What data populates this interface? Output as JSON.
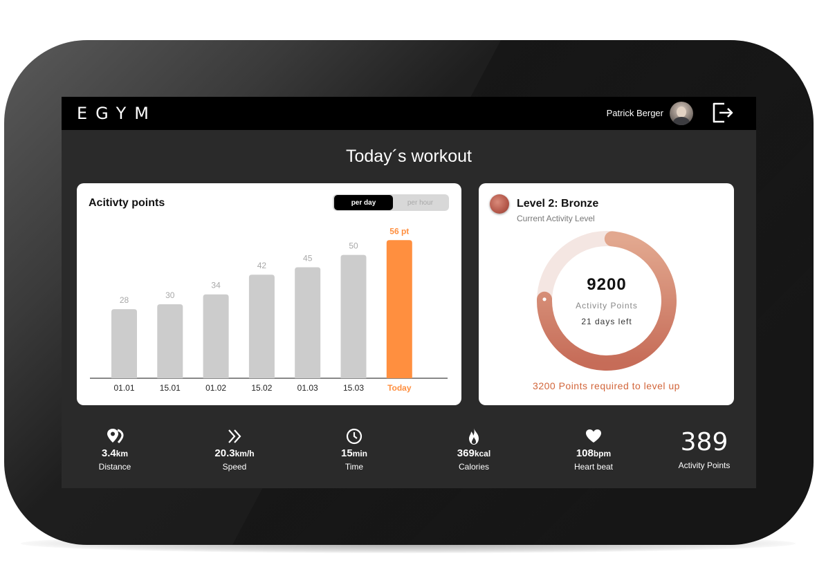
{
  "header": {
    "logo": "EGYM",
    "user_name": "Patrick Berger"
  },
  "page": {
    "title": "Today´s workout"
  },
  "activity": {
    "title": "Acitivty points",
    "toggle": {
      "per_day": "per day",
      "per_hour": "per hour",
      "selected": "per day"
    },
    "highlight_color": "#ff8f3f",
    "bar_color": "#cccccc"
  },
  "chart_data": {
    "type": "bar",
    "categories": [
      "01.01",
      "15.01",
      "01.02",
      "15.02",
      "01.03",
      "15.03",
      "Today"
    ],
    "values": [
      28,
      30,
      34,
      42,
      45,
      50,
      56
    ],
    "data_labels": [
      "28",
      "30",
      "34",
      "42",
      "45",
      "50",
      "56 pt"
    ],
    "highlighted_index": 6,
    "title": "Acitivty points",
    "ylim": [
      0,
      60
    ],
    "grid": false,
    "legend": "none"
  },
  "level": {
    "title": "Level 2: Bronze",
    "subtitle": "Current Activity Level",
    "points": "9200",
    "points_label": "Activity Points",
    "days_left": "21 days left",
    "level_up_text": "3200 Points required to level up",
    "progress_fraction": 0.74,
    "ring_color": "#c9725c",
    "track_color": "#f4e6e2"
  },
  "stats": {
    "distance": {
      "value": "3.4",
      "unit": "km",
      "label": "Distance",
      "icon": "location-pin-icon"
    },
    "speed": {
      "value": "20.3",
      "unit": "km/h",
      "label": "Speed",
      "icon": "double-chevron-right-icon"
    },
    "time": {
      "value": "15",
      "unit": "min",
      "label": "Time",
      "icon": "clock-icon"
    },
    "calories": {
      "value": "369",
      "unit": "kcal",
      "label": "Calories",
      "icon": "flame-icon"
    },
    "heart": {
      "value": "108",
      "unit": "bpm",
      "label": "Heart beat",
      "icon": "heart-icon"
    },
    "activity_points": {
      "value": "389",
      "label": "Activity Points"
    }
  }
}
